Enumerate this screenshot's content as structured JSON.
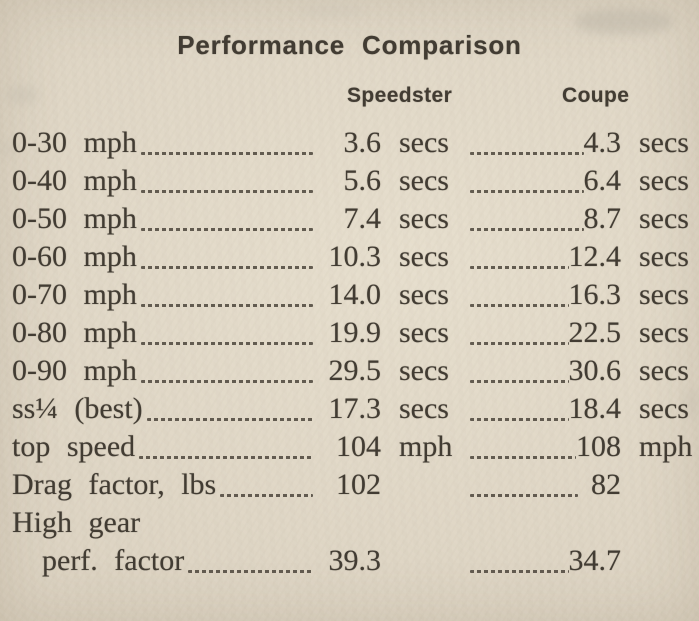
{
  "colors": {
    "paper": "#ded5c4",
    "ink": "#423c33",
    "leader": "#4c453b"
  },
  "header": {
    "title": "Performance Comparison",
    "columns": [
      "Speedster",
      "Coupe"
    ]
  },
  "table": {
    "rows": [
      {
        "label": "0-30 mph",
        "v1": "3.6",
        "u1": "secs",
        "v2": "4.3",
        "u2": "secs"
      },
      {
        "label": "0-40 mph",
        "v1": "5.6",
        "u1": "secs",
        "v2": "6.4",
        "u2": "secs"
      },
      {
        "label": "0-50 mph",
        "v1": "7.4",
        "u1": "secs",
        "v2": "8.7",
        "u2": "secs"
      },
      {
        "label": "0-60 mph",
        "v1": "10.3",
        "u1": "secs",
        "v2": "12.4",
        "u2": "secs"
      },
      {
        "label": "0-70 mph",
        "v1": "14.0",
        "u1": "secs",
        "v2": "16.3",
        "u2": "secs"
      },
      {
        "label": "0-80 mph",
        "v1": "19.9",
        "u1": "secs",
        "v2": "22.5",
        "u2": "secs"
      },
      {
        "label": "0-90 mph",
        "v1": "29.5",
        "u1": "secs",
        "v2": "30.6",
        "u2": "secs"
      },
      {
        "label": "ss¼ (best)",
        "v1": "17.3",
        "u1": "secs",
        "v2": "18.4",
        "u2": "secs"
      },
      {
        "label": "top speed",
        "v1": "104",
        "u1": "mph",
        "v2": "108",
        "u2": "mph"
      },
      {
        "label": "Drag factor, lbs",
        "v1": "102",
        "u1": "",
        "v2": "82",
        "u2": "",
        "gap_before_v2": true
      },
      {
        "label": "High gear",
        "v1": "",
        "u1": "",
        "v2": "",
        "u2": "",
        "label_only": true
      },
      {
        "label": "perf. factor",
        "v1": "39.3",
        "u1": "",
        "v2": "34.7",
        "u2": "",
        "indent": true
      }
    ]
  }
}
